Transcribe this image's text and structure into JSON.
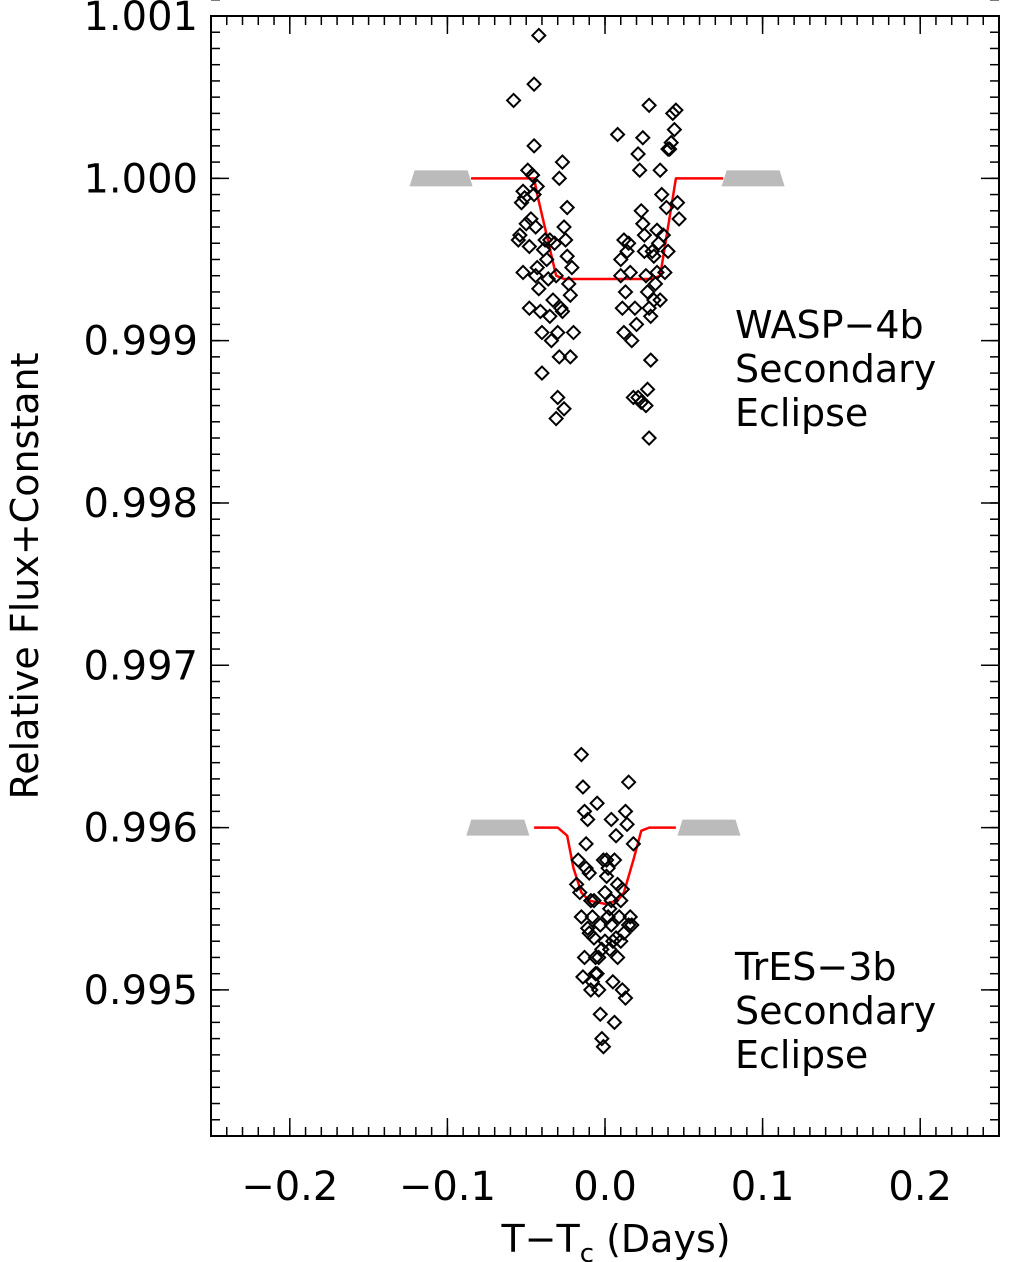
{
  "chart_data": {
    "type": "scatter",
    "xlabel": "T−T",
    "xlabel_sub": "c",
    "xlabel_suffix": " (Days)",
    "ylabel": "Relative Flux+Constant",
    "xlim": [
      -0.25,
      0.25
    ],
    "ylim": [
      0.9941,
      1.001
    ],
    "xticks": [
      {
        "value": -0.2,
        "label": "−0.2"
      },
      {
        "value": -0.1,
        "label": "−0.1"
      },
      {
        "value": 0.0,
        "label": "0.0"
      },
      {
        "value": 0.1,
        "label": "0.1"
      },
      {
        "value": 0.2,
        "label": "0.2"
      }
    ],
    "yticks": [
      {
        "value": 1.001,
        "label": "1.001"
      },
      {
        "value": 1.0,
        "label": "1.000"
      },
      {
        "value": 0.999,
        "label": "0.999"
      },
      {
        "value": 0.998,
        "label": "0.998"
      },
      {
        "value": 0.997,
        "label": "0.997"
      },
      {
        "value": 0.996,
        "label": "0.996"
      },
      {
        "value": 0.995,
        "label": "0.995"
      }
    ],
    "grid": false,
    "colors": {
      "model": "#ff0000",
      "points": "#000000",
      "baseline_bars": "#bbbbbb"
    },
    "annotations": [
      {
        "lines": [
          "WASP−4b",
          "Secondary",
          "Eclipse"
        ]
      },
      {
        "lines": [
          "TrES−3b",
          "Secondary",
          "Eclipse"
        ]
      }
    ],
    "series": [
      {
        "points": [
          [
            -0.055,
            0.99962
          ],
          [
            -0.053,
            0.99985
          ],
          [
            -0.052,
            0.99992
          ],
          [
            -0.05,
            0.99972
          ],
          [
            -0.054,
            0.99965
          ],
          [
            -0.051,
            0.99988
          ],
          [
            -0.049,
            1.00005
          ],
          [
            -0.048,
            0.99958
          ],
          [
            -0.047,
            0.99975
          ],
          [
            -0.046,
            1.00002
          ],
          [
            -0.045,
            0.9999
          ],
          [
            -0.044,
            0.9997
          ],
          [
            -0.043,
            0.99945
          ],
          [
            -0.042,
            0.99932
          ],
          [
            -0.041,
            0.99918
          ],
          [
            -0.04,
            0.99905
          ],
          [
            -0.039,
            0.99956
          ],
          [
            -0.038,
            0.99962
          ],
          [
            -0.037,
            0.9995
          ],
          [
            -0.036,
            0.99938
          ],
          [
            -0.035,
            0.99915
          ],
          [
            -0.034,
            0.999
          ],
          [
            -0.033,
            0.99925
          ],
          [
            -0.032,
            0.9996
          ],
          [
            -0.031,
            0.9994
          ],
          [
            -0.03,
            0.99905
          ],
          [
            -0.029,
            0.9989
          ],
          [
            -0.028,
            0.9992
          ],
          [
            -0.027,
            0.99918
          ],
          [
            -0.026,
            0.9997
          ],
          [
            -0.025,
            0.99962
          ],
          [
            -0.024,
            0.99952
          ],
          [
            -0.023,
            0.99935
          ],
          [
            -0.022,
            0.99928
          ],
          [
            -0.021,
            0.99945
          ],
          [
            -0.02,
            0.99905
          ],
          [
            -0.03,
            0.99865
          ],
          [
            -0.031,
            0.99852
          ],
          [
            -0.026,
            0.99858
          ],
          [
            -0.027,
            1.0001
          ],
          [
            -0.029,
            1.0
          ],
          [
            -0.024,
            0.99982
          ],
          [
            -0.045,
            1.0002
          ],
          [
            -0.046,
            1.00002
          ],
          [
            -0.044,
            0.9994
          ],
          [
            -0.043,
            0.99995
          ],
          [
            -0.058,
            1.00048
          ],
          [
            -0.045,
            1.00058
          ],
          [
            -0.042,
            1.00088
          ],
          [
            -0.022,
            0.9989
          ],
          [
            -0.035,
            0.99962
          ],
          [
            -0.04,
            0.9988
          ],
          [
            -0.048,
            0.9992
          ],
          [
            -0.052,
            0.99942
          ],
          [
            0.008,
            1.00027
          ],
          [
            0.01,
            0.9995
          ],
          [
            0.012,
            0.99962
          ],
          [
            0.01,
            0.9994
          ],
          [
            0.011,
            0.9992
          ],
          [
            0.012,
            0.99905
          ],
          [
            0.013,
            0.9993
          ],
          [
            0.014,
            0.99955
          ],
          [
            0.015,
            0.9996
          ],
          [
            0.016,
            0.99942
          ],
          [
            0.017,
            0.999
          ],
          [
            0.018,
            0.99865
          ],
          [
            0.019,
            0.9992
          ],
          [
            0.021,
            1.00015
          ],
          [
            0.022,
            1.00005
          ],
          [
            0.023,
            0.9998
          ],
          [
            0.024,
            0.99972
          ],
          [
            0.025,
            0.99965
          ],
          [
            0.026,
            0.9994
          ],
          [
            0.027,
            0.9993
          ],
          [
            0.028,
            0.9992
          ],
          [
            0.029,
            0.99915
          ],
          [
            0.03,
            0.99955
          ],
          [
            0.031,
            0.99952
          ],
          [
            0.032,
            0.99935
          ],
          [
            0.033,
            0.99942
          ],
          [
            0.034,
            0.9996
          ],
          [
            0.035,
            1.00005
          ],
          [
            0.036,
            0.9999
          ],
          [
            0.037,
            0.99965
          ],
          [
            0.038,
            0.99942
          ],
          [
            0.04,
            0.99955
          ],
          [
            0.041,
            1.00018
          ],
          [
            0.042,
            1.00022
          ],
          [
            0.043,
            1.0004
          ],
          [
            0.044,
            1.0003
          ],
          [
            0.045,
            1.00042
          ],
          [
            0.046,
            0.99985
          ],
          [
            0.047,
            0.99975
          ],
          [
            0.028,
            1.00045
          ],
          [
            0.024,
            1.00025
          ],
          [
            0.026,
            0.9986
          ],
          [
            0.027,
            0.9987
          ],
          [
            0.029,
            0.99888
          ],
          [
            0.028,
            0.9984
          ],
          [
            0.021,
            0.99865
          ],
          [
            0.023,
            0.99862
          ],
          [
            0.02,
            0.9991
          ],
          [
            0.025,
            0.99955
          ],
          [
            0.031,
            0.99925
          ],
          [
            0.033,
            0.99968
          ],
          [
            0.035,
            0.99925
          ],
          [
            0.039,
            0.99982
          ],
          [
            0.04,
            1.00018
          ],
          [
            -0.015,
            0.99645
          ],
          [
            -0.014,
            0.99625
          ],
          [
            -0.013,
            0.9961
          ],
          [
            -0.012,
            0.9959
          ],
          [
            -0.011,
            0.99605
          ],
          [
            -0.01,
            0.99572
          ],
          [
            -0.009,
            0.99555
          ],
          [
            -0.008,
            0.99545
          ],
          [
            -0.007,
            0.99532
          ],
          [
            -0.006,
            0.9952
          ],
          [
            -0.005,
            0.9951
          ],
          [
            -0.004,
            0.995
          ],
          [
            -0.003,
            0.99485
          ],
          [
            -0.002,
            0.9947
          ],
          [
            -0.001,
            0.99465
          ],
          [
            0.0,
            0.9956
          ],
          [
            0.001,
            0.9958
          ],
          [
            0.002,
            0.99575
          ],
          [
            0.003,
            0.9955
          ],
          [
            0.004,
            0.9954
          ],
          [
            0.005,
            0.9953
          ],
          [
            0.006,
            0.9958
          ],
          [
            0.007,
            0.99595
          ],
          [
            0.008,
            0.99565
          ],
          [
            0.009,
            0.99545
          ],
          [
            0.01,
            0.9953
          ],
          [
            0.011,
            0.995
          ],
          [
            0.012,
            0.99535
          ],
          [
            0.013,
            0.9961
          ],
          [
            0.014,
            0.99602
          ],
          [
            0.015,
            0.99628
          ],
          [
            0.016,
            0.99545
          ],
          [
            0.017,
            0.9954
          ],
          [
            0.018,
            0.9959
          ],
          [
            -0.016,
            0.9956
          ],
          [
            -0.018,
            0.99565
          ],
          [
            -0.017,
            0.9958
          ],
          [
            -0.015,
            0.99545
          ],
          [
            -0.012,
            0.99575
          ],
          [
            -0.01,
            0.99535
          ],
          [
            -0.008,
            0.99505
          ],
          [
            -0.006,
            0.9951
          ],
          [
            -0.004,
            0.9952
          ],
          [
            -0.002,
            0.99525
          ],
          [
            0.0,
            0.9953
          ],
          [
            0.002,
            0.99545
          ],
          [
            0.004,
            0.99555
          ],
          [
            0.006,
            0.9948
          ],
          [
            0.008,
            0.9952
          ],
          [
            0.01,
            0.99555
          ],
          [
            -0.001,
            0.9958
          ],
          [
            0.001,
            0.9957
          ],
          [
            0.003,
            0.99525
          ],
          [
            -0.003,
            0.9954
          ],
          [
            0.004,
            0.99605
          ],
          [
            -0.005,
            0.99615
          ],
          [
            -0.013,
            0.9952
          ],
          [
            0.005,
            0.99505
          ],
          [
            -0.007,
            0.99555
          ],
          [
            0.007,
            0.99532
          ],
          [
            -0.009,
            0.995
          ],
          [
            0.011,
            0.99562
          ],
          [
            -0.011,
            0.99538
          ],
          [
            0.013,
            0.99495
          ],
          [
            -0.014,
            0.99508
          ],
          [
            0.015,
            0.9954
          ]
        ]
      },
      {
        "model": [
          [
            -0.085,
            1.0
          ],
          [
            -0.045,
            1.0
          ],
          [
            -0.043,
            0.9999
          ],
          [
            -0.031,
            0.9994
          ],
          [
            -0.026,
            0.99938
          ],
          [
            0.03,
            0.99938
          ],
          [
            0.035,
            0.9994
          ],
          [
            0.045,
            1.0
          ],
          [
            0.075,
            1.0
          ]
        ],
        "baseline_bars": [
          {
            "x0": -0.124,
            "x1": -0.084,
            "y": 1.0
          },
          {
            "x0": 0.074,
            "x1": 0.114,
            "y": 1.0
          }
        ]
      },
      {
        "model": [
          [
            -0.045,
            0.996
          ],
          [
            -0.03,
            0.996
          ],
          [
            -0.024,
            0.99595
          ],
          [
            -0.02,
            0.99575
          ],
          [
            -0.015,
            0.9956
          ],
          [
            -0.01,
            0.99555
          ],
          [
            0.0,
            0.99553
          ],
          [
            0.008,
            0.99555
          ],
          [
            0.012,
            0.9956
          ],
          [
            0.018,
            0.9958
          ],
          [
            0.023,
            0.99598
          ],
          [
            0.028,
            0.996
          ],
          [
            0.045,
            0.996
          ]
        ],
        "baseline_bars": [
          {
            "x0": -0.088,
            "x1": -0.048,
            "y": 0.996
          },
          {
            "x0": 0.046,
            "x1": 0.086,
            "y": 0.996
          }
        ]
      }
    ]
  }
}
